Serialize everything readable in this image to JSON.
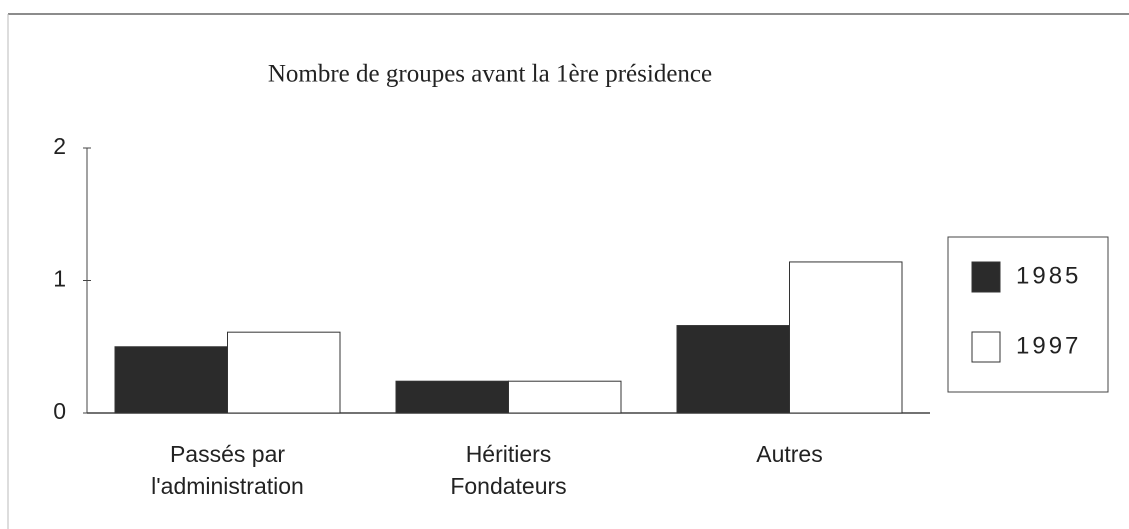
{
  "chart_data": {
    "type": "bar",
    "title": "Nombre de groupes avant la 1ère présidence",
    "categories": [
      "Passés par\nl'administration",
      "Héritiers\nFondateurs",
      "Autres"
    ],
    "series": [
      {
        "name": "1985",
        "color": "#2b2b2b",
        "values": [
          0.5,
          0.24,
          0.66
        ]
      },
      {
        "name": "1997",
        "color": "#ffffff",
        "values": [
          0.61,
          0.24,
          1.14
        ]
      }
    ],
    "ylim": [
      0,
      2
    ],
    "yticks": [
      0,
      1,
      2
    ],
    "grid": false,
    "legend": "right"
  }
}
